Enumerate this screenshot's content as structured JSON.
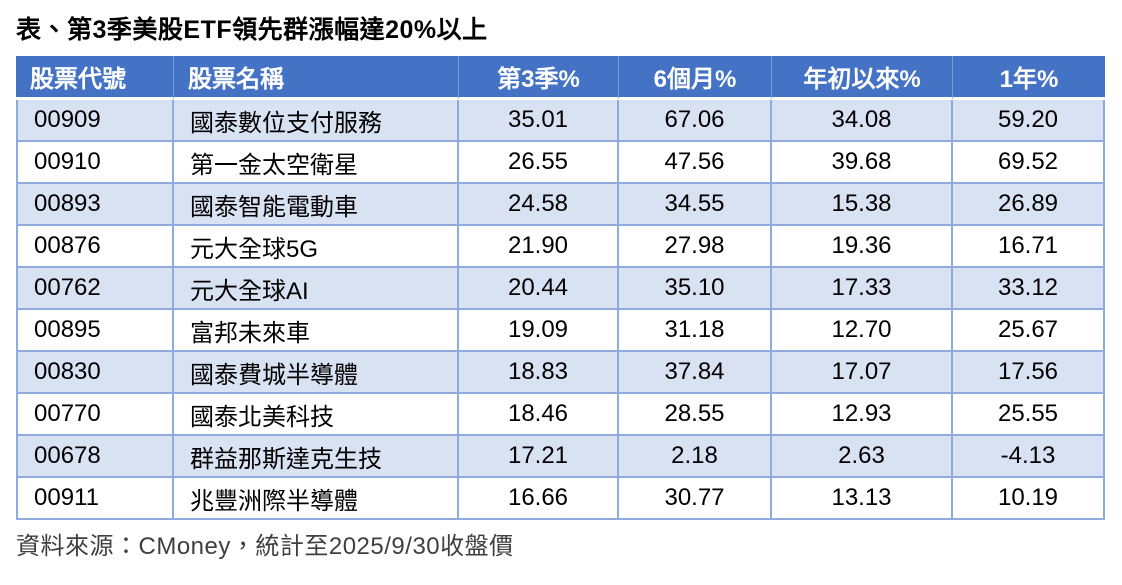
{
  "title": "表、第3季美股ETF領先群漲幅達20%以上",
  "chart_data": {
    "type": "table",
    "title": "表、第3季美股ETF領先群漲幅達20%以上",
    "columns": [
      "股票代號",
      "股票名稱",
      "第3季%",
      "6個月%",
      "年初以來%",
      "1年%"
    ],
    "column_keys": [
      "code",
      "name",
      "q3-pct",
      "6m-pct",
      "ytd-pct",
      "1y-pct"
    ],
    "rows": [
      [
        "00909",
        "國泰數位支付服務",
        "35.01",
        "67.06",
        "34.08",
        "59.20"
      ],
      [
        "00910",
        "第一金太空衛星",
        "26.55",
        "47.56",
        "39.68",
        "69.52"
      ],
      [
        "00893",
        "國泰智能電動車",
        "24.58",
        "34.55",
        "15.38",
        "26.89"
      ],
      [
        "00876",
        "元大全球5G",
        "21.90",
        "27.98",
        "19.36",
        "16.71"
      ],
      [
        "00762",
        "元大全球AI",
        "20.44",
        "35.10",
        "17.33",
        "33.12"
      ],
      [
        "00895",
        "富邦未來車",
        "19.09",
        "31.18",
        "12.70",
        "25.67"
      ],
      [
        "00830",
        "國泰費城半導體",
        "18.83",
        "37.84",
        "17.07",
        "17.56"
      ],
      [
        "00770",
        "國泰北美科技",
        "18.46",
        "28.55",
        "12.93",
        "25.55"
      ],
      [
        "00678",
        "群益那斯達克生技",
        "17.21",
        "2.18",
        "2.63",
        "-4.13"
      ],
      [
        "00911",
        "兆豐洲際半導體",
        "16.66",
        "30.77",
        "13.13",
        "10.19"
      ]
    ],
    "source": "資料來源：CMoney，統計至2025/9/30收盤價"
  },
  "footer": {
    "source_note": "資料來源：CMoney，統計至2025/9/30收盤價"
  },
  "colors": {
    "header_bg": "#4472C4",
    "header_text": "#FFFFFF",
    "banded_row_bg": "#D9E2F3",
    "plain_row_bg": "#FFFFFF",
    "cell_border": "#8FAADC",
    "header_divider": "#7E9CD8",
    "title_text": "#000000",
    "footer_text": "#3F3F3F"
  }
}
